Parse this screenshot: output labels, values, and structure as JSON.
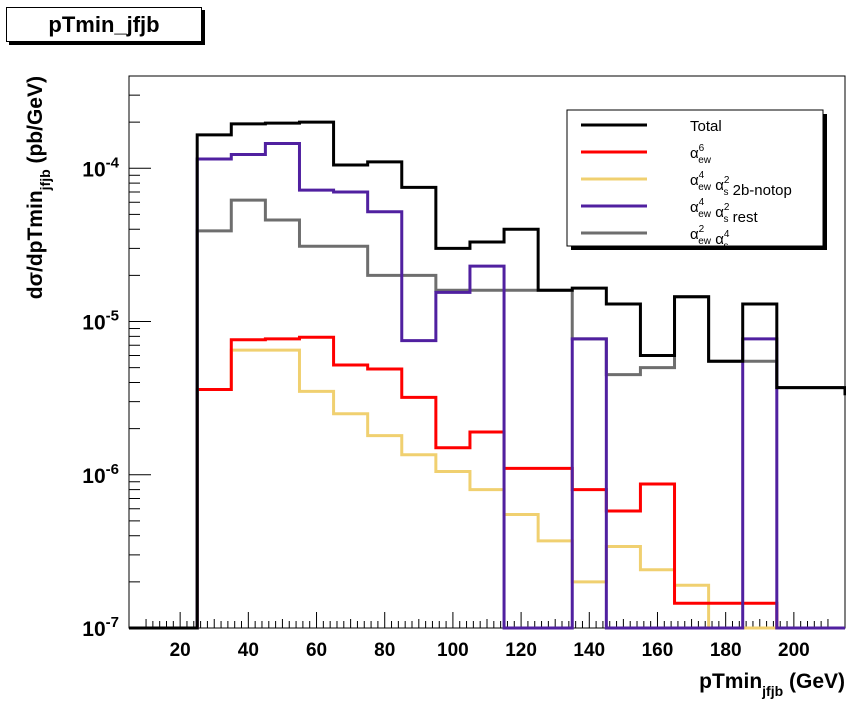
{
  "title": "pTmin_jfjb",
  "chart_data": {
    "type": "line",
    "scale": {
      "x": "linear",
      "y": "log"
    },
    "xlim": [
      5,
      215
    ],
    "ylim": [
      1e-07,
      0.0004
    ],
    "xticks": [
      20,
      40,
      60,
      80,
      100,
      120,
      140,
      160,
      180,
      200
    ],
    "xtick_labels": [
      "20",
      "40",
      "60",
      "80",
      "100",
      "120",
      "140",
      "160",
      "180",
      "200"
    ],
    "yticks": [
      1e-07,
      1e-06,
      1e-05,
      0.0001
    ],
    "ytick_labels": [
      {
        "base": "10",
        "exp": "-7"
      },
      {
        "base": "10",
        "exp": "-6"
      },
      {
        "base": "10",
        "exp": "-5"
      },
      {
        "base": "10",
        "exp": "-4"
      }
    ],
    "xlabel": {
      "main": "pTmin",
      "sub": "jfjb",
      "unit": " (GeV)"
    },
    "ylabel": {
      "main": "dσ/dpTmin",
      "sub": "jfjb",
      "unit": " (pb/GeV)"
    },
    "bin_edges": [
      5,
      15,
      25,
      35,
      45,
      55,
      65,
      75,
      85,
      95,
      105,
      115,
      125,
      135,
      145,
      155,
      165,
      175,
      185,
      195,
      205,
      215
    ],
    "legend": {
      "placement": "top-right",
      "entries": [
        {
          "series": 0,
          "parts": [
            {
              "t": "Total"
            }
          ]
        },
        {
          "series": 1,
          "parts": [
            {
              "t": "α",
              "sup": "6",
              "sub": "ew"
            }
          ]
        },
        {
          "series": 2,
          "parts": [
            {
              "t": "α",
              "sup": "4",
              "sub": "ew"
            },
            {
              "t": " α",
              "sup": "2",
              "sub": "s"
            },
            {
              "t": " 2b-notop"
            }
          ]
        },
        {
          "series": 3,
          "parts": [
            {
              "t": "α",
              "sup": "4",
              "sub": "ew"
            },
            {
              "t": " α",
              "sup": "2",
              "sub": "s"
            },
            {
              "t": " rest"
            }
          ]
        },
        {
          "series": 4,
          "parts": [
            {
              "t": "α",
              "sup": "2",
              "sub": "ew"
            },
            {
              "t": " α",
              "sup": "4",
              "sub": "s"
            }
          ]
        }
      ]
    },
    "series": [
      {
        "color": "#000000",
        "values": [
          1e-07,
          1e-07,
          0.000165,
          0.000195,
          0.000197,
          0.0002,
          0.000105,
          0.00011,
          7.5e-05,
          3e-05,
          3.3e-05,
          4e-05,
          1.6e-05,
          1.65e-05,
          1.3e-05,
          6e-06,
          1.45e-05,
          5.5e-06,
          1.3e-05,
          3.7e-06,
          3.7e-06,
          3.3e-06
        ]
      },
      {
        "color": "#ff0000",
        "values": [
          1e-07,
          1e-07,
          3.6e-06,
          7.6e-06,
          7.7e-06,
          7.9e-06,
          5.2e-06,
          4.9e-06,
          3.2e-06,
          1.5e-06,
          1.9e-06,
          1.1e-06,
          1.1e-06,
          8e-07,
          5.8e-07,
          8.7e-07,
          1.45e-07,
          1.45e-07,
          1.45e-07,
          1e-07,
          1e-07,
          1e-07
        ]
      },
      {
        "color": "#f0d070",
        "values": [
          1e-07,
          1e-07,
          3.6e-06,
          6.5e-06,
          6.5e-06,
          3.5e-06,
          2.5e-06,
          1.8e-06,
          1.35e-06,
          1.05e-06,
          8e-07,
          5.5e-07,
          3.7e-07,
          2e-07,
          3.4e-07,
          2.4e-07,
          1.9e-07,
          1e-07,
          1e-07,
          1e-07,
          1e-07,
          1e-07
        ]
      },
      {
        "color": "#5020a0",
        "values": [
          1e-07,
          1e-07,
          0.000115,
          0.000123,
          0.000145,
          7.2e-05,
          7e-05,
          5.2e-05,
          7.5e-06,
          1.55e-05,
          2.3e-05,
          1e-07,
          1e-07,
          7.7e-06,
          1e-07,
          1e-07,
          1e-07,
          1e-07,
          7.7e-06,
          1e-07,
          1e-07,
          1e-07
        ]
      },
      {
        "color": "#6e6e6e",
        "values": [
          1e-07,
          1e-07,
          3.9e-05,
          6.2e-05,
          4.6e-05,
          3.1e-05,
          3.1e-05,
          2e-05,
          2e-05,
          1.6e-05,
          1.6e-05,
          1.6e-05,
          1.6e-05,
          7.7e-06,
          4.5e-06,
          5e-06,
          1.45e-05,
          5.5e-06,
          5.5e-06,
          3.7e-06,
          3.7e-06,
          3.3e-06
        ]
      }
    ]
  }
}
